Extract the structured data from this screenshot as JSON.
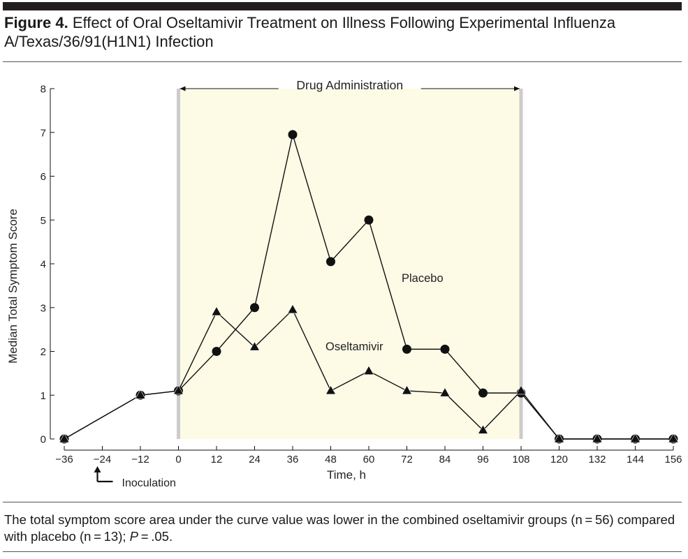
{
  "figure": {
    "label": "Figure 4.",
    "title": "Effect of Oral Oseltamivir Treatment on Illness Following Experimental Influenza A/Texas/36/91(H1N1) Infection",
    "caption_main": "The total symptom score area under the curve value was lower in the combined oseltamivir groups (n = 56) compared with placebo (n = 13);",
    "caption_p": "P",
    "caption_end": " = .05."
  },
  "chart_data": {
    "type": "line",
    "title": "",
    "xlabel": "Time, h",
    "ylabel": "Median Total Symptom Score",
    "xlim": [
      -36,
      156
    ],
    "ylim": [
      0,
      8
    ],
    "x_ticks": [
      -36,
      -24,
      -12,
      0,
      12,
      24,
      36,
      48,
      60,
      72,
      84,
      96,
      108,
      120,
      132,
      144,
      156
    ],
    "x_tick_labels": [
      "−36",
      "−24",
      "−12",
      "0",
      "12",
      "24",
      "36",
      "48",
      "60",
      "72",
      "84",
      "96",
      "108",
      "120",
      "132",
      "144",
      "156"
    ],
    "y_ticks": [
      0,
      1,
      2,
      3,
      4,
      5,
      6,
      7,
      8
    ],
    "grid": false,
    "shaded_region": {
      "x_start": 0,
      "x_end": 108,
      "label": "Drug Administration"
    },
    "annotations": [
      {
        "text": "Inoculation",
        "x": -24
      }
    ],
    "series": [
      {
        "name": "Placebo",
        "marker": "circle",
        "x": [
          -36,
          -12,
          0,
          12,
          24,
          36,
          48,
          60,
          72,
          84,
          96,
          108,
          120,
          132,
          144,
          156
        ],
        "y": [
          0,
          1.0,
          1.1,
          2.0,
          3.0,
          6.95,
          4.05,
          5.0,
          2.05,
          2.05,
          1.05,
          1.05,
          0,
          0,
          0,
          0
        ]
      },
      {
        "name": "Oseltamivir",
        "marker": "triangle",
        "x": [
          -36,
          -12,
          0,
          12,
          24,
          36,
          48,
          60,
          72,
          84,
          96,
          108,
          120,
          132,
          144,
          156
        ],
        "y": [
          0,
          1.0,
          1.1,
          2.9,
          2.1,
          2.95,
          1.1,
          1.55,
          1.1,
          1.05,
          0.2,
          1.1,
          0,
          0,
          0,
          0
        ]
      }
    ]
  }
}
